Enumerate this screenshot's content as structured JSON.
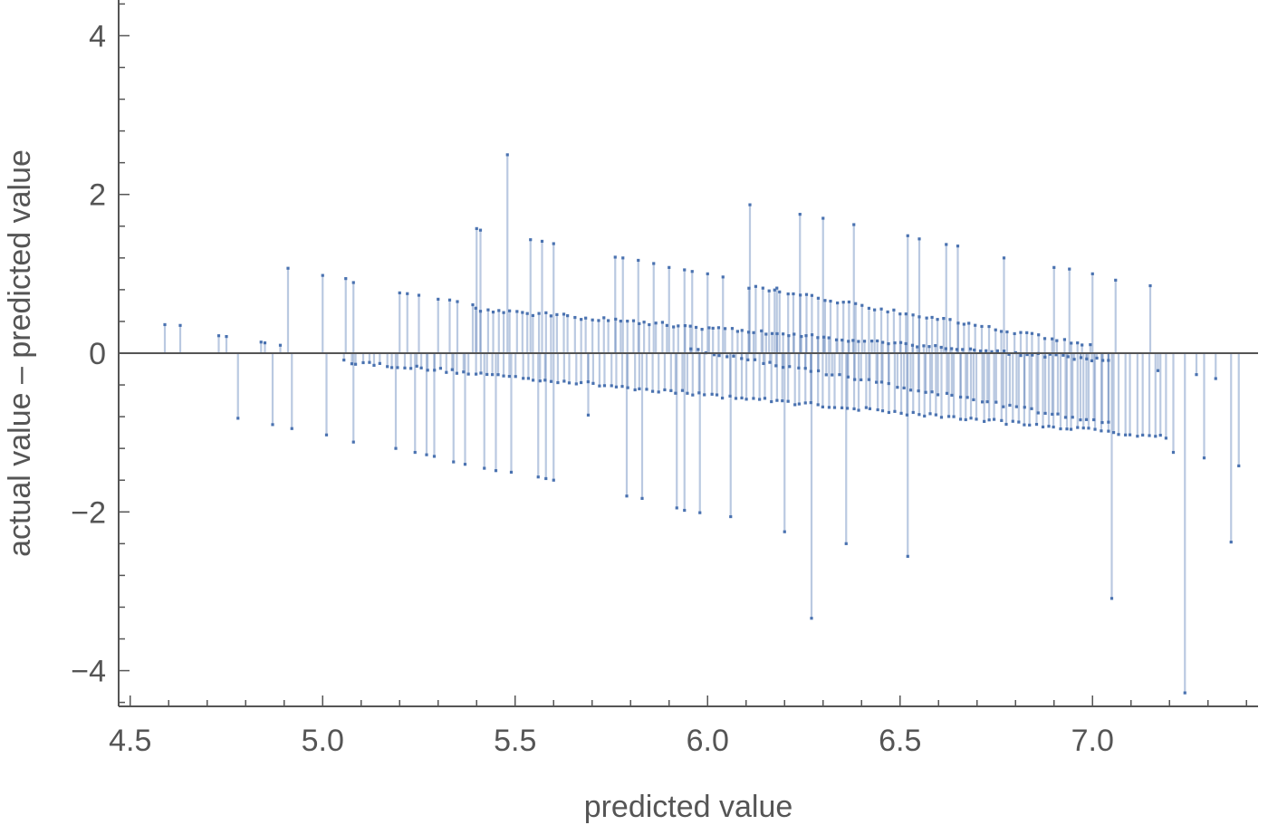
{
  "chart_data": {
    "type": "scatter",
    "style": "residual stems from zero line",
    "title": "",
    "xlabel": "predicted value",
    "ylabel": "actual value – predicted value",
    "xlim": [
      4.47,
      7.43
    ],
    "ylim": [
      -4.45,
      4.45
    ],
    "x_ticks": [
      4.5,
      5.0,
      5.5,
      6.0,
      6.5,
      7.0
    ],
    "x_tick_labels": [
      "4.5",
      "5.0",
      "5.5",
      "6.0",
      "6.5",
      "7.0"
    ],
    "y_ticks": [
      -4,
      -2,
      0,
      2,
      4
    ],
    "y_tick_labels": [
      "−4",
      "−2",
      "0",
      "2",
      "4"
    ],
    "grid": false,
    "colors": {
      "stem": "#4a72b0",
      "axis": "#555555"
    },
    "points": [
      [
        4.59,
        0.36
      ],
      [
        4.63,
        0.35
      ],
      [
        4.73,
        0.22
      ],
      [
        4.75,
        0.21
      ],
      [
        4.78,
        -0.82
      ],
      [
        4.84,
        0.14
      ],
      [
        4.85,
        0.13
      ],
      [
        4.87,
        -0.9
      ],
      [
        4.89,
        0.1
      ],
      [
        4.91,
        1.07
      ],
      [
        4.92,
        -0.95
      ],
      [
        5.0,
        0.98
      ],
      [
        5.01,
        -1.03
      ],
      [
        5.06,
        0.94
      ],
      [
        5.08,
        0.89
      ],
      [
        5.08,
        -1.12
      ],
      [
        5.19,
        -1.2
      ],
      [
        5.2,
        0.76
      ],
      [
        5.22,
        0.75
      ],
      [
        5.24,
        -1.25
      ],
      [
        5.25,
        0.73
      ],
      [
        5.27,
        -1.28
      ],
      [
        5.29,
        -1.3
      ],
      [
        5.3,
        0.68
      ],
      [
        5.33,
        0.67
      ],
      [
        5.34,
        -1.37
      ],
      [
        5.35,
        0.65
      ],
      [
        5.37,
        -1.4
      ],
      [
        5.39,
        0.61
      ],
      [
        5.4,
        1.57
      ],
      [
        5.41,
        1.55
      ],
      [
        5.42,
        -1.45
      ],
      [
        5.45,
        -1.48
      ],
      [
        5.48,
        2.5
      ],
      [
        5.49,
        -1.5
      ],
      [
        5.54,
        1.43
      ],
      [
        5.56,
        -1.56
      ],
      [
        5.57,
        1.41
      ],
      [
        5.58,
        -1.58
      ],
      [
        5.6,
        1.38
      ],
      [
        5.6,
        -1.6
      ],
      [
        5.69,
        -0.78
      ],
      [
        5.76,
        1.21
      ],
      [
        5.78,
        1.2
      ],
      [
        5.79,
        -1.8
      ],
      [
        5.82,
        1.17
      ],
      [
        5.83,
        -1.83
      ],
      [
        5.86,
        1.13
      ],
      [
        5.9,
        1.08
      ],
      [
        5.92,
        -1.95
      ],
      [
        5.94,
        1.05
      ],
      [
        5.94,
        -1.98
      ],
      [
        5.96,
        1.03
      ],
      [
        5.98,
        -2.01
      ],
      [
        6.0,
        1.0
      ],
      [
        6.04,
        0.96
      ],
      [
        6.06,
        -2.06
      ],
      [
        6.11,
        1.87
      ],
      [
        6.18,
        0.82
      ],
      [
        6.2,
        -2.25
      ],
      [
        6.24,
        1.75
      ],
      [
        6.27,
        -3.34
      ],
      [
        6.3,
        1.7
      ],
      [
        6.36,
        -2.4
      ],
      [
        6.38,
        1.62
      ],
      [
        6.52,
        1.48
      ],
      [
        6.52,
        -2.56
      ],
      [
        6.55,
        1.44
      ],
      [
        6.62,
        1.37
      ],
      [
        6.65,
        1.35
      ],
      [
        6.77,
        1.2
      ],
      [
        6.9,
        1.08
      ],
      [
        6.94,
        1.06
      ],
      [
        7.0,
        1.0
      ],
      [
        7.05,
        -3.09
      ],
      [
        7.06,
        0.92
      ],
      [
        7.15,
        0.85
      ],
      [
        7.17,
        -0.22
      ],
      [
        7.21,
        -1.25
      ],
      [
        7.24,
        -4.28
      ],
      [
        7.27,
        -0.27
      ],
      [
        7.29,
        -1.32
      ],
      [
        7.32,
        -0.32
      ],
      [
        7.36,
        -2.38
      ],
      [
        7.38,
        -1.42
      ]
    ],
    "bands": [
      {
        "x_start": 5.05,
        "x_end": 7.2,
        "y_start": -0.1,
        "y_end": -1.06,
        "count": 140
      },
      {
        "x_start": 5.39,
        "x_end": 7.05,
        "y_start": 0.56,
        "y_end": -0.1,
        "count": 110
      },
      {
        "x_start": 5.95,
        "x_end": 7.05,
        "y_start": 0.05,
        "y_end": -0.9,
        "count": 60
      },
      {
        "x_start": 6.1,
        "x_end": 7.0,
        "y_start": 0.85,
        "y_end": 0.1,
        "count": 55
      }
    ]
  }
}
